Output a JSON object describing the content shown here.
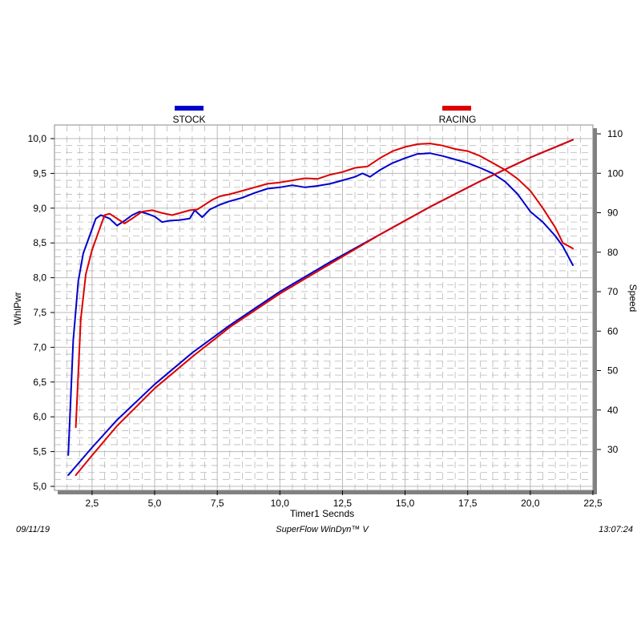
{
  "chart_data": {
    "type": "line",
    "xlabel": "Timer1 Secnds",
    "ylabel": "WhlPwr",
    "y2label": "Speed",
    "xlim": [
      1.0,
      22.5
    ],
    "ylim": [
      5.0,
      10.0
    ],
    "y2lim": [
      20,
      110
    ],
    "x_ticks": [
      "2,5",
      "5,0",
      "7,5",
      "10,0",
      "12,5",
      "15,0",
      "17,5",
      "20,0",
      "22,5"
    ],
    "x_tick_values": [
      2.5,
      5.0,
      7.5,
      10.0,
      12.5,
      15.0,
      17.5,
      20.0,
      22.5
    ],
    "y_ticks": [
      "5,0",
      "5,5",
      "6,0",
      "6,5",
      "7,0",
      "7,5",
      "8,0",
      "8,5",
      "9,0",
      "9,5",
      "10,0"
    ],
    "y_tick_values": [
      5.0,
      5.5,
      6.0,
      6.5,
      7.0,
      7.5,
      8.0,
      8.5,
      9.0,
      9.5,
      10.0
    ],
    "y2_ticks": [
      "30",
      "40",
      "50",
      "60",
      "70",
      "80",
      "90",
      "100",
      "110"
    ],
    "y2_tick_values": [
      30,
      40,
      50,
      60,
      70,
      80,
      90,
      100,
      110
    ],
    "grid": true,
    "legend_position": "top",
    "series": [
      {
        "name": "STOCK",
        "color": "#0000cc",
        "axis": "left",
        "x": [
          1.55,
          1.75,
          1.95,
          2.15,
          2.4,
          2.65,
          2.85,
          3.0,
          3.2,
          3.5,
          3.8,
          4.1,
          4.4,
          4.7,
          5.0,
          5.3,
          5.6,
          6.0,
          6.4,
          6.6,
          6.9,
          7.2,
          7.6,
          8.0,
          8.5,
          9.0,
          9.5,
          10.0,
          10.5,
          11.0,
          11.5,
          12.0,
          12.5,
          13.0,
          13.3,
          13.6,
          14.0,
          14.5,
          15.0,
          15.5,
          16.0,
          16.5,
          17.0,
          17.5,
          18.0,
          18.5,
          19.0,
          19.5,
          20.0,
          20.5,
          21.0,
          21.3,
          21.7
        ],
        "y": [
          5.45,
          7.1,
          7.95,
          8.35,
          8.6,
          8.85,
          8.9,
          8.88,
          8.85,
          8.75,
          8.82,
          8.9,
          8.95,
          8.92,
          8.88,
          8.8,
          8.82,
          8.83,
          8.85,
          8.97,
          8.87,
          8.98,
          9.05,
          9.1,
          9.15,
          9.22,
          9.28,
          9.3,
          9.33,
          9.3,
          9.32,
          9.35,
          9.4,
          9.45,
          9.5,
          9.45,
          9.55,
          9.65,
          9.72,
          9.78,
          9.79,
          9.75,
          9.7,
          9.65,
          9.58,
          9.5,
          9.38,
          9.2,
          8.95,
          8.8,
          8.6,
          8.45,
          8.18
        ]
      },
      {
        "name": "RACING",
        "color": "#dd0000",
        "axis": "left",
        "x": [
          1.85,
          2.05,
          2.25,
          2.5,
          2.75,
          3.0,
          3.2,
          3.5,
          3.8,
          4.1,
          4.5,
          4.9,
          5.3,
          5.7,
          6.0,
          6.4,
          6.7,
          7.0,
          7.3,
          7.6,
          8.0,
          8.5,
          9.0,
          9.5,
          10.0,
          10.5,
          11.0,
          11.5,
          12.0,
          12.5,
          13.0,
          13.5,
          14.0,
          14.5,
          15.0,
          15.5,
          16.0,
          16.5,
          17.0,
          17.5,
          18.0,
          18.5,
          19.0,
          19.5,
          20.0,
          20.5,
          21.0,
          21.3,
          21.7
        ],
        "y": [
          5.85,
          7.4,
          8.05,
          8.4,
          8.65,
          8.9,
          8.92,
          8.85,
          8.78,
          8.85,
          8.95,
          8.97,
          8.93,
          8.9,
          8.93,
          8.97,
          8.98,
          9.05,
          9.12,
          9.17,
          9.2,
          9.25,
          9.3,
          9.35,
          9.37,
          9.4,
          9.43,
          9.42,
          9.48,
          9.52,
          9.58,
          9.6,
          9.72,
          9.82,
          9.88,
          9.92,
          9.93,
          9.9,
          9.85,
          9.82,
          9.75,
          9.65,
          9.55,
          9.42,
          9.25,
          9.0,
          8.72,
          8.5,
          8.42
        ]
      },
      {
        "name": "STOCK speed",
        "color": "#0000cc",
        "axis": "right",
        "x": [
          1.55,
          2.5,
          3.5,
          5.0,
          6.5,
          8.0,
          10.0,
          12.0,
          14.0,
          16.0,
          18.0,
          20.0,
          21.7
        ],
        "y": [
          23.5,
          30.5,
          37.5,
          46.5,
          54.5,
          61.5,
          70.0,
          77.5,
          84.5,
          91.5,
          98.0,
          104.0,
          108.5
        ]
      },
      {
        "name": "RACING speed",
        "color": "#dd0000",
        "axis": "right",
        "x": [
          1.85,
          2.5,
          3.5,
          5.0,
          6.5,
          8.0,
          10.0,
          12.0,
          14.0,
          16.0,
          18.0,
          20.0,
          21.7
        ],
        "y": [
          23.5,
          28.5,
          36.0,
          45.5,
          53.5,
          61.0,
          69.5,
          77.0,
          84.5,
          91.5,
          98.0,
          104.0,
          108.5
        ]
      }
    ]
  },
  "legend": [
    {
      "label": "STOCK",
      "color": "#0000cc"
    },
    {
      "label": "RACING",
      "color": "#dd0000"
    }
  ],
  "footer": {
    "date": "09/11/19",
    "software": "SuperFlow WinDyn™ V",
    "time": "13:07:24"
  },
  "colors": {
    "grid": "#b8b8b8",
    "frame": "#888888",
    "shadow": "#808080"
  }
}
